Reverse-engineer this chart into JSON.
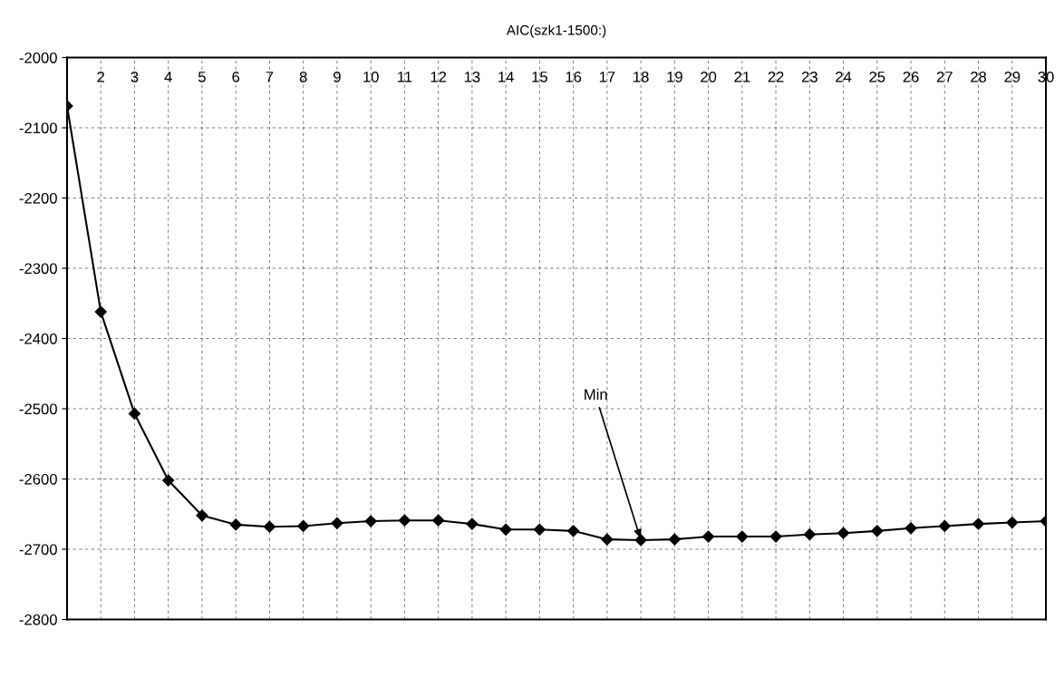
{
  "chart_data": {
    "type": "line",
    "title": "AIC(szk1-1500:)",
    "x": [
      1,
      2,
      3,
      4,
      5,
      6,
      7,
      8,
      9,
      10,
      11,
      12,
      13,
      14,
      15,
      16,
      17,
      18,
      19,
      20,
      21,
      22,
      23,
      24,
      25,
      26,
      27,
      28,
      29,
      30
    ],
    "series": [
      {
        "color": "#000000",
        "values": [
          -2069,
          -2362,
          -2507,
          -2602,
          -2652,
          -2665,
          -2668,
          -2667,
          -2663,
          -2660,
          -2659,
          -2659,
          -2664,
          -2672,
          -2672,
          -2674,
          -2686,
          -2687,
          -2686,
          -2682,
          -2682,
          -2682,
          -2679,
          -2677,
          -2674,
          -2670,
          -2667,
          -2664,
          -2662,
          -2660
        ]
      }
    ],
    "xlim": [
      1,
      30
    ],
    "xticks": [
      2,
      3,
      4,
      5,
      6,
      7,
      8,
      9,
      10,
      11,
      12,
      13,
      14,
      15,
      16,
      17,
      18,
      19,
      20,
      21,
      22,
      23,
      24,
      25,
      26,
      27,
      28,
      29,
      30
    ],
    "ylim": [
      -2800,
      -2000
    ],
    "yticks": [
      -2800,
      -2700,
      -2600,
      -2500,
      -2400,
      -2300,
      -2200,
      -2100,
      -2000
    ],
    "annotations": [
      {
        "text": "Min",
        "x": 18,
        "y": -2687
      }
    ],
    "grid": true,
    "marker": "diamond",
    "line_style": "solid",
    "legend": false
  }
}
